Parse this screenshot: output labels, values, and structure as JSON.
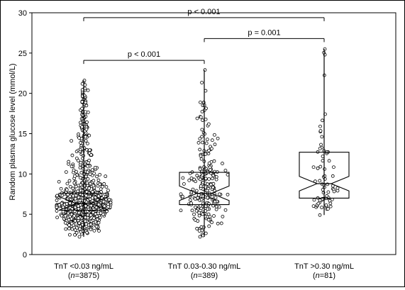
{
  "chart_data": {
    "type": "box",
    "ylabel": "Random plasma glucose level (mmol/L)",
    "ylim": [
      0,
      30
    ],
    "yticks": [
      0,
      5,
      10,
      15,
      20,
      25,
      30
    ],
    "groups": [
      {
        "label": "TnT <0.03 ng/mL",
        "n_label": "(n=3875)",
        "n_prefix": "(",
        "n_italic": "n",
        "n_rest": "=3875)",
        "min": 2.2,
        "q1": 5.5,
        "median": 6.3,
        "q3": 7.6,
        "max": 21.6,
        "sample_count": 3875
      },
      {
        "label": "TnT 0.03-0.30 ng/mL",
        "n_label": "(n=389)",
        "n_prefix": "(",
        "n_italic": "n",
        "n_rest": "=389)",
        "min": 2.2,
        "q1": 6.2,
        "median": 7.6,
        "q3": 10.2,
        "max": 22.9,
        "sample_count": 389
      },
      {
        "label": "TnT >0.30 ng/mL",
        "n_label": "(n=81)",
        "n_prefix": "(",
        "n_italic": "n",
        "n_rest": "=81)",
        "min": 4.9,
        "q1": 7.0,
        "median": 8.8,
        "q3": 12.7,
        "max": 25.5,
        "sample_count": 81
      }
    ],
    "comparisons": [
      {
        "from": 0,
        "to": 1,
        "y": 24.1,
        "label": "p < 0.001"
      },
      {
        "from": 1,
        "to": 2,
        "y": 26.8,
        "label": "p = 0.001"
      },
      {
        "from": 0,
        "to": 2,
        "y": 29.4,
        "label": "p < 0.001"
      }
    ]
  }
}
